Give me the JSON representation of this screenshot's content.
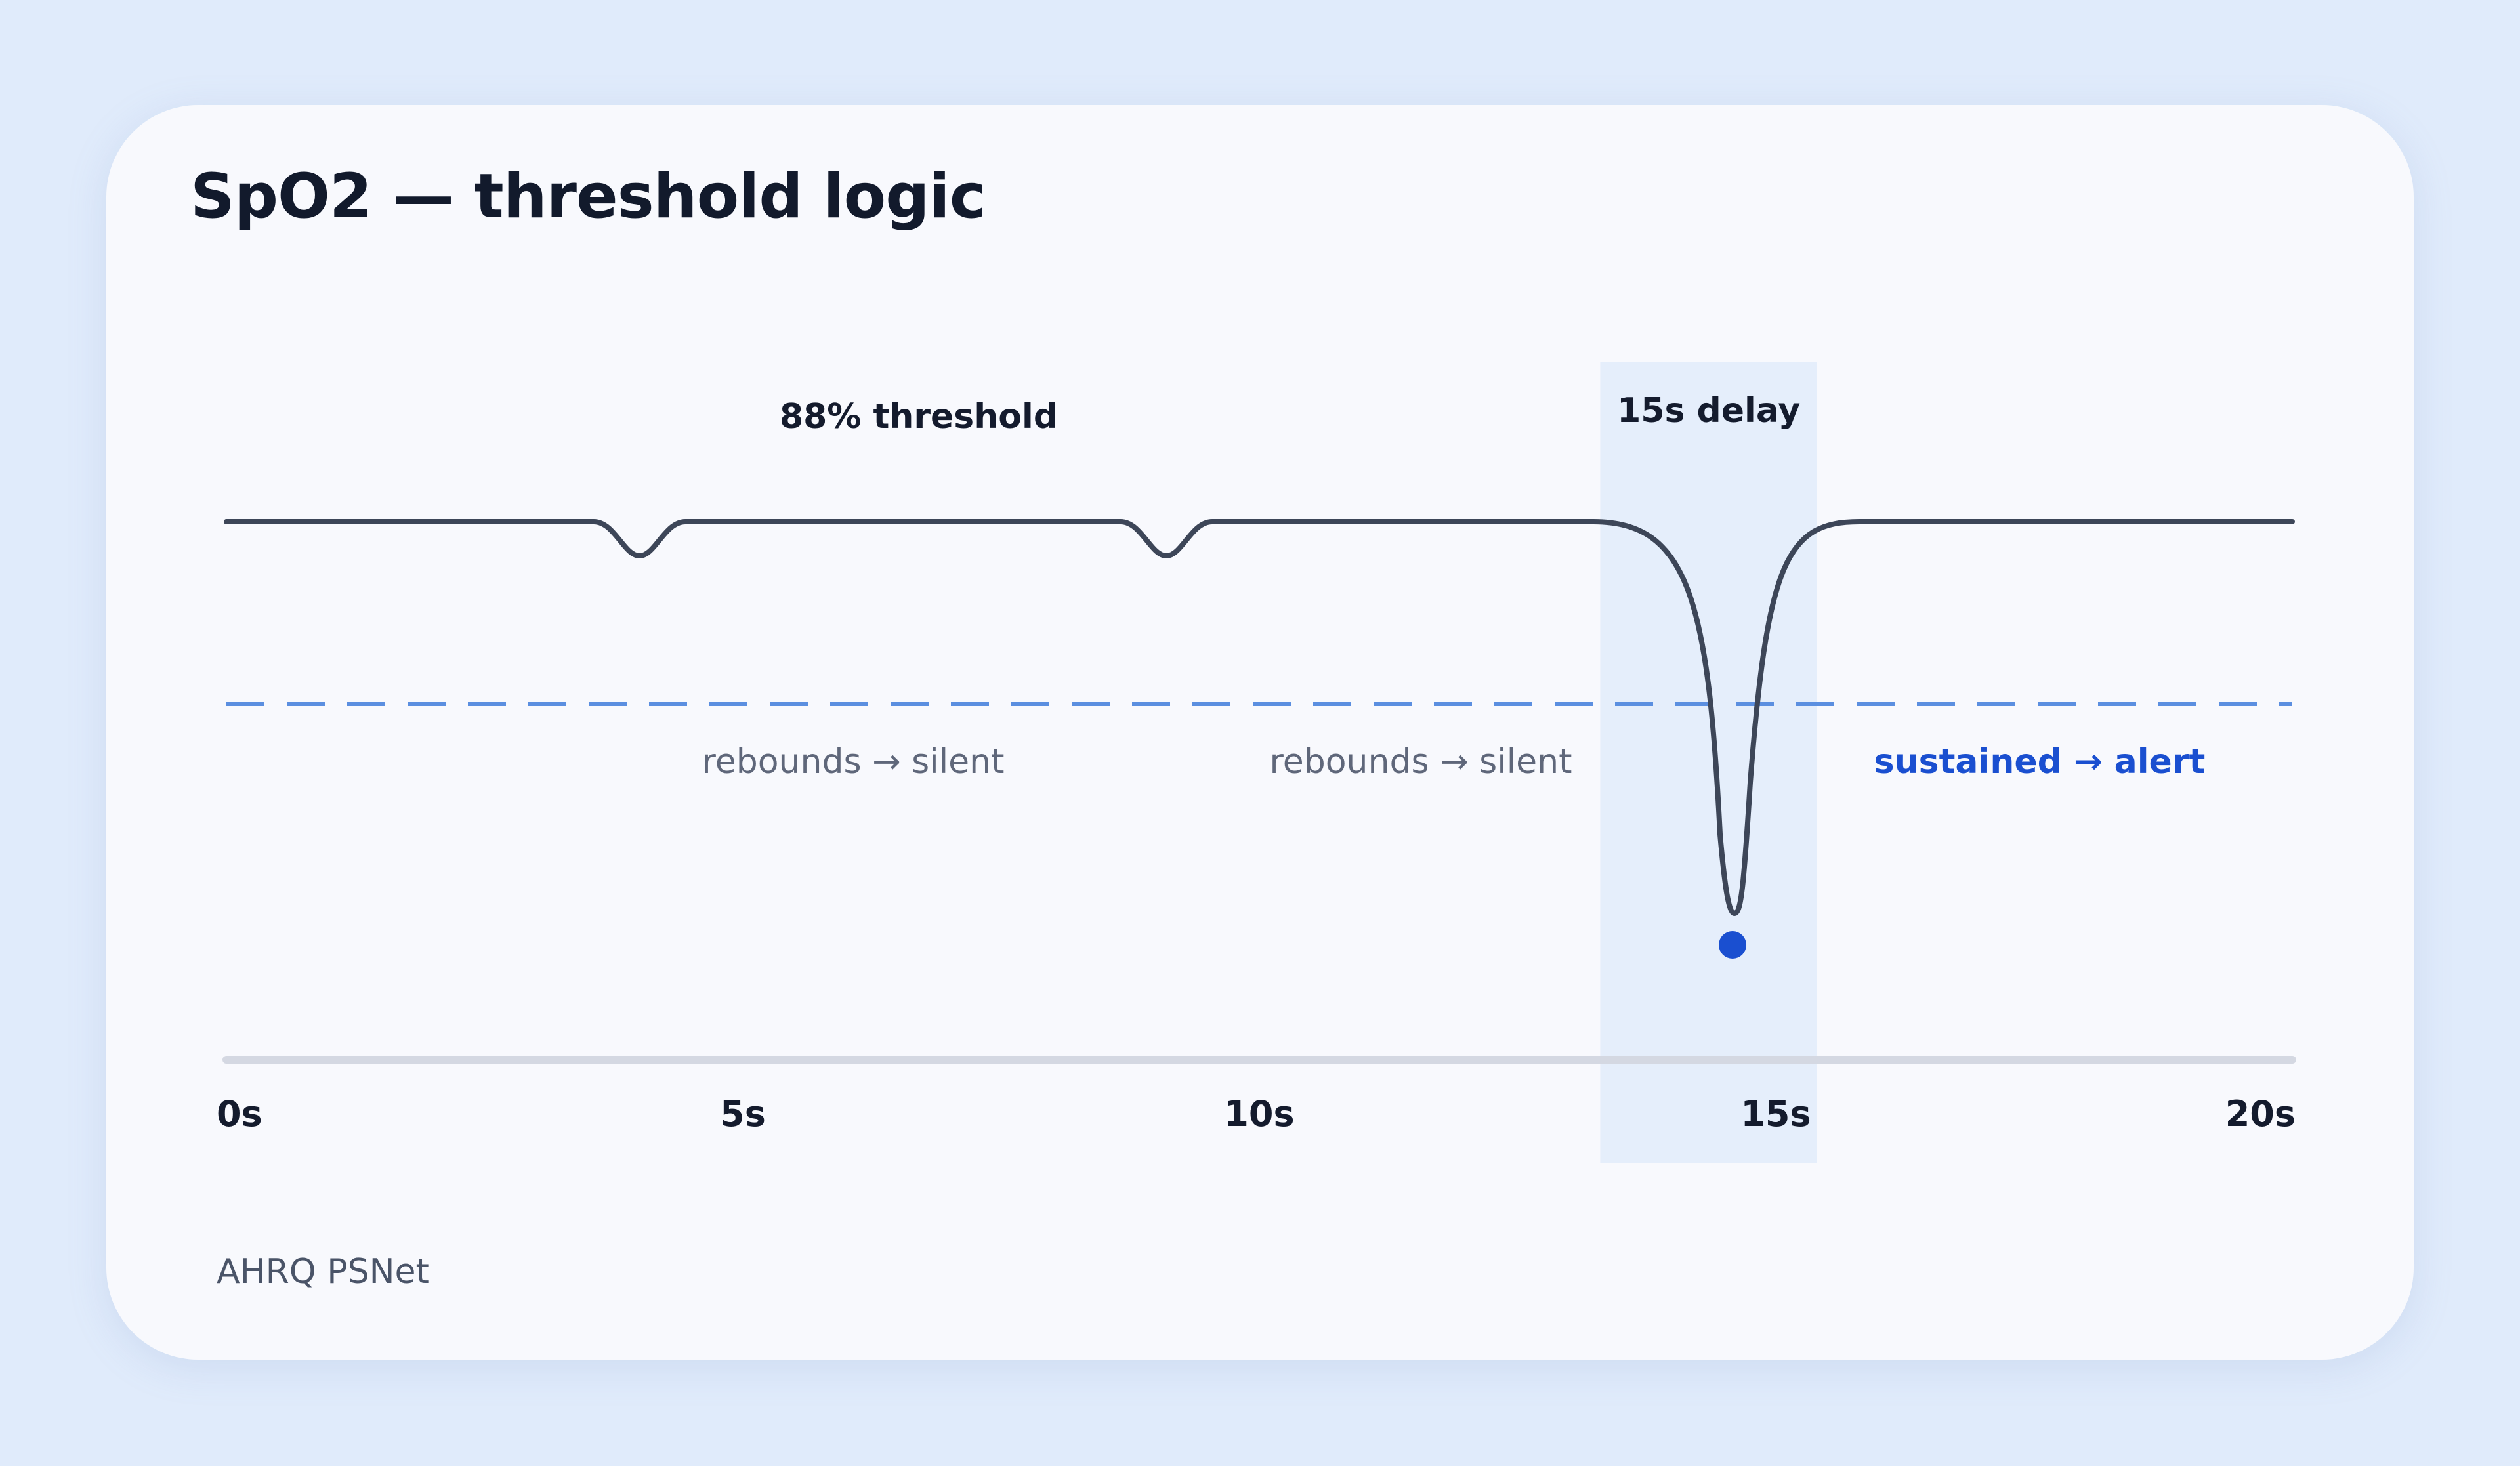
{
  "title": "SpO2 — threshold logic",
  "source": "AHRQ PSNet",
  "colors": {
    "background": "#e0ebfb",
    "card": "#f8f9fd",
    "signal": "#3d4658",
    "threshold": "#5b8fe0",
    "accent": "#1a4fd0",
    "delay_band": "#e2ecfb",
    "axis": "#d4d8e2"
  },
  "chart_data": {
    "type": "line",
    "xlabel": "",
    "ylabel": "",
    "xlim": [
      0,
      20
    ],
    "x_ticks": [
      0,
      5,
      10,
      15,
      20
    ],
    "x_tick_labels": [
      "0s",
      "5s",
      "10s",
      "15s",
      "20s"
    ],
    "threshold": {
      "label": "88% threshold",
      "style": "dashed"
    },
    "delay_window": {
      "label": "15s delay",
      "x_start": 13.3,
      "x_end": 15.4
    },
    "events": [
      {
        "label": "rebounds → silent",
        "x": 4.0,
        "type": "brief-dip",
        "outcome": "silent"
      },
      {
        "label": "rebounds → silent",
        "x": 9.1,
        "type": "brief-dip",
        "outcome": "silent"
      },
      {
        "label": "sustained → alert",
        "x": 14.6,
        "type": "sustained-dip",
        "outcome": "alert"
      }
    ],
    "alert_marker_x": 14.6
  }
}
